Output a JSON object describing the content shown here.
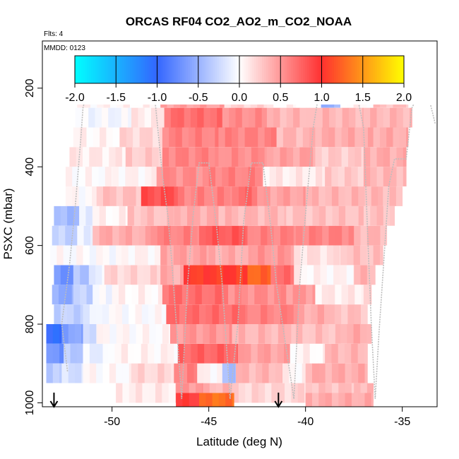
{
  "chart_data": {
    "type": "heatmap",
    "title": "ORCAS RF04 CO2_AO2_m_CO2_NOAA",
    "subtitle_left": "Flts: 4",
    "inset_label": "MMDD: 0123",
    "xlabel": "Latitude (deg N)",
    "ylabel": "PSXC (mbar)",
    "xlim": [
      -53.6,
      -33.2
    ],
    "ylim": [
      1010,
      80
    ],
    "y_reversed": true,
    "x_ticks": [
      -50,
      -45,
      -40,
      -35
    ],
    "x_tick_labels": [
      "-50",
      "-45",
      "-40",
      "-35"
    ],
    "y_ticks": [
      200,
      400,
      600,
      800,
      1000
    ],
    "y_tick_labels": [
      "200",
      "400",
      "600",
      "800",
      "1000"
    ],
    "colorbar": {
      "ticks": [
        -2.0,
        -1.5,
        -1.0,
        -0.5,
        0.0,
        0.5,
        1.0,
        1.5,
        2.0
      ],
      "tick_labels": [
        "-2.0",
        "-1.5",
        "-1.0",
        "-0.5",
        "0.0",
        "0.5",
        "1.0",
        "1.5",
        "2.0"
      ],
      "range": [
        -2.0,
        2.0
      ],
      "colors": [
        "#00ffff",
        "#3366ff",
        "#ffffff",
        "#ff3030",
        "#ffff00"
      ]
    },
    "cell_size": {
      "dlat": 0.34,
      "dp": 50
    },
    "rows": [
      {
        "p": 175,
        "segments": [
          [
            -51.5,
            -50.2,
            0.35
          ],
          [
            -50.2,
            -47.2,
            0.9
          ],
          [
            -47.2,
            -45.4,
            0.95
          ],
          [
            -45.4,
            -43.0,
            0.8
          ],
          [
            -43.0,
            -40.5,
            0.6
          ],
          [
            -38.8,
            -37.6,
            0.4
          ],
          [
            -37.6,
            -36.0,
            0.4
          ],
          [
            -36.0,
            -34.8,
            0.35
          ]
        ]
      },
      {
        "p": 225,
        "segments": [
          [
            -51.8,
            -47.5,
            0.05
          ],
          [
            -47.5,
            -44.2,
            0.45
          ],
          [
            -44.2,
            -42.0,
            0.2
          ],
          [
            -42.0,
            -40.5,
            0.05
          ],
          [
            -39.2,
            -38.2,
            -0.5
          ],
          [
            -38.2,
            -36.5,
            0.05
          ],
          [
            -36.5,
            -34.7,
            0.3
          ]
        ]
      },
      {
        "p": 275,
        "segments": [
          [
            -51.9,
            -49.0,
            -0.05
          ],
          [
            -49.0,
            -47.3,
            0.1
          ],
          [
            -47.3,
            -44.3,
            0.7
          ],
          [
            -44.3,
            -42.0,
            0.55
          ],
          [
            -42.0,
            -39.8,
            0.35
          ],
          [
            -39.8,
            -37.0,
            0.35
          ],
          [
            -37.0,
            -34.5,
            0.35
          ]
        ]
      },
      {
        "p": 325,
        "segments": [
          [
            -52.0,
            -49.6,
            0.05
          ],
          [
            -49.6,
            -47.4,
            0.2
          ],
          [
            -47.4,
            -44.5,
            0.6
          ],
          [
            -44.5,
            -41.5,
            0.6
          ],
          [
            -41.5,
            -39.5,
            0.35
          ],
          [
            -39.5,
            -36.5,
            0.4
          ],
          [
            -36.5,
            -34.7,
            0.4
          ]
        ]
      },
      {
        "p": 375,
        "segments": [
          [
            -52.2,
            -49.3,
            0.1
          ],
          [
            -49.3,
            -47.4,
            0.25
          ],
          [
            -47.4,
            -44.5,
            0.6
          ],
          [
            -44.5,
            -42.0,
            0.55
          ],
          [
            -42.0,
            -39.5,
            0.45
          ],
          [
            -39.5,
            -37.0,
            0.25
          ],
          [
            -37.0,
            -34.8,
            0.4
          ]
        ]
      },
      {
        "p": 425,
        "segments": [
          [
            -52.4,
            -50.0,
            0.02
          ],
          [
            -50.0,
            -47.7,
            0.05
          ],
          [
            -47.7,
            -45.0,
            0.55
          ],
          [
            -45.0,
            -42.2,
            0.6
          ],
          [
            -42.2,
            -39.0,
            0.1
          ],
          [
            -39.0,
            -37.0,
            0.25
          ],
          [
            -37.0,
            -34.8,
            0.35
          ]
        ]
      },
      {
        "p": 475,
        "segments": [
          [
            -52.4,
            -50.8,
            0.02
          ],
          [
            -50.8,
            -48.5,
            0.3
          ],
          [
            -48.5,
            -46.6,
            0.85
          ],
          [
            -46.6,
            -43.8,
            0.6
          ],
          [
            -43.8,
            -42.5,
            0.7
          ],
          [
            -42.5,
            -40.0,
            0.45
          ],
          [
            -40.0,
            -36.0,
            0.35
          ],
          [
            -36.0,
            -35.0,
            0.3
          ]
        ]
      },
      {
        "p": 525,
        "segments": [
          [
            -53.0,
            -51.7,
            -0.45
          ],
          [
            -51.7,
            -51.0,
            -0.1
          ],
          [
            -51.0,
            -49.2,
            0.05
          ],
          [
            -49.2,
            -46.8,
            0.3
          ],
          [
            -46.8,
            -44.5,
            0.4
          ],
          [
            -44.5,
            -41.0,
            0.35
          ],
          [
            -41.0,
            -37.0,
            0.3
          ],
          [
            -37.0,
            -35.4,
            0.3
          ]
        ]
      },
      {
        "p": 575,
        "segments": [
          [
            -53.1,
            -51.8,
            -0.3
          ],
          [
            -51.8,
            -51.0,
            -0.1
          ],
          [
            -51.0,
            -48.0,
            0.4
          ],
          [
            -48.0,
            -45.5,
            0.6
          ],
          [
            -45.5,
            -43.0,
            0.8
          ],
          [
            -43.0,
            -40.5,
            0.6
          ],
          [
            -40.5,
            -37.5,
            0.6
          ],
          [
            -37.5,
            -35.8,
            0.35
          ]
        ]
      },
      {
        "p": 625,
        "segments": [
          [
            -53.2,
            -49.5,
            0.0
          ],
          [
            -49.5,
            -47.5,
            0.05
          ],
          [
            -47.5,
            -45.0,
            0.45
          ],
          [
            -45.0,
            -42.8,
            0.4
          ],
          [
            -42.8,
            -40.6,
            0.5
          ],
          [
            -40.6,
            -38.2,
            0.15
          ],
          [
            -38.2,
            -36.0,
            0.3
          ]
        ]
      },
      {
        "p": 675,
        "segments": [
          [
            -53.0,
            -52.0,
            -0.7
          ],
          [
            -52.0,
            -51.2,
            -0.4
          ],
          [
            -51.2,
            -50.4,
            -0.1
          ],
          [
            -50.4,
            -47.5,
            0.2
          ],
          [
            -47.5,
            -46.3,
            0.4
          ],
          [
            -46.3,
            -43.0,
            1.05
          ],
          [
            -43.0,
            -41.8,
            1.25
          ],
          [
            -41.8,
            -40.6,
            0.7
          ],
          [
            -40.6,
            -37.5,
            0.05
          ],
          [
            -37.5,
            -36.4,
            0.35
          ]
        ]
      },
      {
        "p": 725,
        "segments": [
          [
            -53.1,
            -52.0,
            -0.55
          ],
          [
            -52.0,
            -51.0,
            -0.3
          ],
          [
            -51.0,
            -50.0,
            -0.05
          ],
          [
            -50.0,
            -47.4,
            0.05
          ],
          [
            -47.4,
            -44.0,
            0.7
          ],
          [
            -44.0,
            -41.0,
            0.55
          ],
          [
            -41.0,
            -39.5,
            0.5
          ],
          [
            -39.5,
            -37.0,
            0.1
          ],
          [
            -37.0,
            -36.6,
            0.3
          ]
        ]
      },
      {
        "p": 775,
        "segments": [
          [
            -53.0,
            -51.5,
            -0.3
          ],
          [
            -51.5,
            -50.5,
            -0.1
          ],
          [
            -50.5,
            -47.2,
            0.0
          ],
          [
            -47.2,
            -43.0,
            0.7
          ],
          [
            -43.0,
            -40.4,
            0.6
          ],
          [
            -40.4,
            -38.5,
            0.4
          ],
          [
            -38.5,
            -36.8,
            0.3
          ]
        ]
      },
      {
        "p": 825,
        "segments": [
          [
            -53.4,
            -52.6,
            -1.0
          ],
          [
            -52.6,
            -51.5,
            -0.6
          ],
          [
            -51.5,
            -50.8,
            -0.2
          ],
          [
            -50.8,
            -47.0,
            0.02
          ],
          [
            -47.0,
            -43.8,
            0.5
          ],
          [
            -43.8,
            -40.5,
            0.35
          ],
          [
            -40.5,
            -38.2,
            0.3
          ],
          [
            -38.2,
            -36.6,
            0.4
          ]
        ]
      },
      {
        "p": 875,
        "segments": [
          [
            -53.4,
            -52.5,
            -0.7
          ],
          [
            -52.5,
            -51.5,
            -0.35
          ],
          [
            -51.5,
            -50.2,
            -0.1
          ],
          [
            -50.2,
            -46.6,
            0.05
          ],
          [
            -46.6,
            -43.5,
            0.75
          ],
          [
            -43.5,
            -40.8,
            0.45
          ],
          [
            -40.8,
            -39.0,
            0.05
          ],
          [
            -39.0,
            -36.8,
            0.35
          ]
        ]
      },
      {
        "p": 925,
        "segments": [
          [
            -53.4,
            -52.6,
            -0.35
          ],
          [
            -52.6,
            -51.5,
            -0.2
          ],
          [
            -51.5,
            -49.0,
            0.02
          ],
          [
            -49.0,
            -46.8,
            0.2
          ],
          [
            -46.8,
            -45.6,
            0.6
          ],
          [
            -45.6,
            -44.3,
            0.05
          ],
          [
            -44.3,
            -43.6,
            -0.4
          ],
          [
            -43.6,
            -41.2,
            0.35
          ],
          [
            -41.2,
            -40.0,
            0.05
          ],
          [
            -40.0,
            -36.8,
            0.4
          ]
        ]
      },
      {
        "p": 975,
        "segments": [
          [
            -49.8,
            -46.7,
            0.1
          ],
          [
            -46.7,
            -45.3,
            0.5
          ],
          [
            -45.3,
            -43.8,
            0.35
          ],
          [
            -43.8,
            -40.0,
            0.2
          ],
          [
            -40.0,
            -37.5,
            0.3
          ],
          [
            -37.5,
            -36.5,
            0.35
          ]
        ]
      },
      {
        "p": 1000,
        "segments": [
          [
            -46.7,
            -45.5,
            0.95
          ],
          [
            -45.5,
            -43.7,
            1.3
          ],
          [
            -40.0,
            -36.5,
            0.4
          ]
        ]
      }
    ],
    "flight_track": [
      [
        -52.3,
        920
      ],
      [
        -52.6,
        800
      ],
      [
        -52.2,
        650
      ],
      [
        -51.9,
        500
      ],
      [
        -51.6,
        320
      ],
      [
        -51.5,
        250
      ],
      [
        -51.2,
        190
      ],
      [
        -50.8,
        175
      ],
      [
        -48.4,
        175
      ],
      [
        -47.8,
        220
      ],
      [
        -47.4,
        420
      ],
      [
        -47.1,
        530
      ],
      [
        -46.9,
        650
      ],
      [
        -46.6,
        850
      ],
      [
        -46.4,
        990
      ],
      [
        -46.1,
        700
      ],
      [
        -45.8,
        520
      ],
      [
        -45.5,
        390
      ],
      [
        -45.0,
        390
      ],
      [
        -44.6,
        550
      ],
      [
        -44.3,
        700
      ],
      [
        -43.9,
        990
      ],
      [
        -43.5,
        800
      ],
      [
        -43.2,
        540
      ],
      [
        -42.8,
        390
      ],
      [
        -42.2,
        390
      ],
      [
        -41.8,
        550
      ],
      [
        -41.5,
        700
      ],
      [
        -40.6,
        990
      ],
      [
        -40.3,
        700
      ],
      [
        -40.0,
        520
      ],
      [
        -39.6,
        300
      ],
      [
        -39.2,
        180
      ],
      [
        -37.5,
        180
      ],
      [
        -37.0,
        300
      ],
      [
        -36.8,
        560
      ],
      [
        -36.6,
        800
      ],
      [
        -36.4,
        990
      ],
      [
        -36.2,
        820
      ],
      [
        -35.9,
        600
      ],
      [
        -35.7,
        450
      ],
      [
        -35.4,
        380
      ],
      [
        -34.8,
        380
      ],
      [
        -34.5,
        250
      ],
      [
        -34.0,
        200
      ],
      [
        -33.6,
        230
      ],
      [
        -33.3,
        290
      ]
    ],
    "arrows": [
      {
        "lat": -53.0,
        "label": ""
      },
      {
        "lat": -41.4,
        "label": ""
      }
    ]
  }
}
